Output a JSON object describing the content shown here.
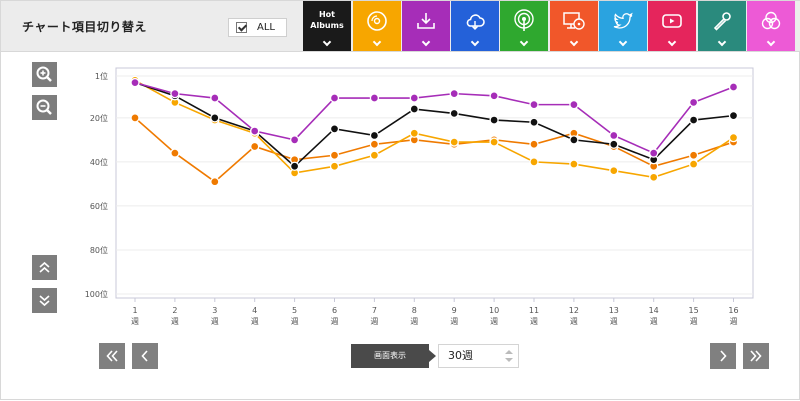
{
  "header": {
    "title": "チャート項目切り替え",
    "all_label": "ALL",
    "tiles": [
      {
        "name": "tile-hot-albums",
        "line1": "Hot",
        "line2": "Albums",
        "color": "#1a1a1a",
        "icon": "text"
      },
      {
        "name": "tile-physical-sales",
        "color": "#f7a600",
        "icon": "cd-icon"
      },
      {
        "name": "tile-downloads",
        "color": "#a62db8",
        "icon": "download-icon"
      },
      {
        "name": "tile-streaming",
        "color": "#2461d9",
        "icon": "cloud-icon"
      },
      {
        "name": "tile-radio",
        "color": "#2fa82f",
        "icon": "broadcast-icon"
      },
      {
        "name": "tile-lookup",
        "color": "#f1572a",
        "icon": "monitor-cd-icon"
      },
      {
        "name": "tile-twitter",
        "color": "#2aa3e0",
        "icon": "twitter-icon"
      },
      {
        "name": "tile-youtube",
        "color": "#e5255c",
        "icon": "youtube-icon"
      },
      {
        "name": "tile-karaoke",
        "color": "#2a8a7d",
        "icon": "microphone-icon"
      },
      {
        "name": "tile-all-combined",
        "color": "#ed5ad6",
        "icon": "venn-icon"
      }
    ]
  },
  "controls": {
    "display_label": "画面表示",
    "display_value": "30週"
  },
  "chart_data": {
    "type": "line",
    "y_reversed": true,
    "ylim": [
      1,
      100
    ],
    "yticks": [
      {
        "value": 1,
        "label": "1位"
      },
      {
        "value": 20,
        "label": "20位"
      },
      {
        "value": 40,
        "label": "40位"
      },
      {
        "value": 60,
        "label": "60位"
      },
      {
        "value": 80,
        "label": "80位"
      },
      {
        "value": 100,
        "label": "100位"
      }
    ],
    "categories": [
      "1",
      "2",
      "3",
      "4",
      "5",
      "6",
      "7",
      "8",
      "9",
      "10",
      "11",
      "12",
      "13",
      "14",
      "15",
      "16"
    ],
    "category_unit": "週",
    "grid": true,
    "series": [
      {
        "color": "#a62db8",
        "values": [
          4,
          9,
          11,
          26,
          30,
          11,
          11,
          11,
          9,
          10,
          14,
          14,
          28,
          36,
          13,
          6
        ]
      },
      {
        "color": "#111111",
        "values": [
          4,
          10,
          20,
          26,
          42,
          25,
          28,
          16,
          18,
          21,
          22,
          30,
          32,
          39,
          21,
          19
        ]
      },
      {
        "color": "#f7a600",
        "values": [
          3,
          13,
          21,
          27,
          45,
          42,
          37,
          27,
          31,
          31,
          40,
          41,
          44,
          47,
          41,
          29
        ]
      },
      {
        "color": "#ef7a00",
        "values": [
          20,
          36,
          49,
          33,
          39,
          37,
          32,
          30,
          32,
          30,
          32,
          27,
          33,
          42,
          37,
          31
        ]
      }
    ]
  }
}
